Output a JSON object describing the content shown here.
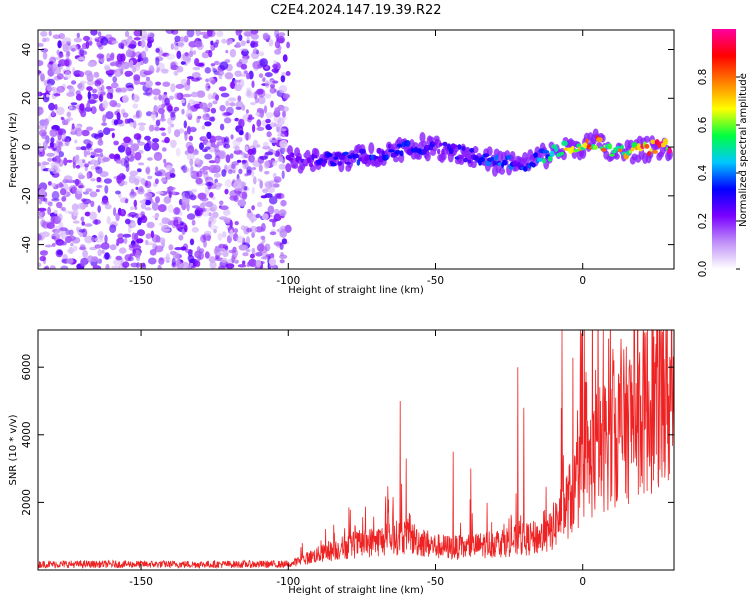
{
  "title": "C2E4.2024.147.19.39.R22",
  "chart_data": [
    {
      "type": "heatmap",
      "xlabel": "Height of straight line (km)",
      "ylabel": "Frequency (Hz)",
      "xlim": [
        -185,
        31
      ],
      "ylim": [
        -50,
        48
      ],
      "x_ticks": [
        -150,
        -100,
        -50,
        0
      ],
      "y_ticks": [
        -40,
        -20,
        0,
        20,
        40
      ],
      "colorbar": {
        "label": "Normalized spectral amplitude",
        "range": [
          0,
          1
        ],
        "ticks": [
          0.0,
          0.2,
          0.4,
          0.6,
          0.8
        ],
        "tick_labels": [
          "0.0",
          "0.2",
          "0.4",
          "0.6",
          "0.8"
        ],
        "colormap": [
          "#ffffff",
          "#c090f8",
          "#7a00ff",
          "#0000ff",
          "#00c8ff",
          "#00ff40",
          "#ffff00",
          "#ff8000",
          "#ff0000",
          "#ff00a0"
        ]
      },
      "description_noise": {
        "x_range": [
          -185,
          -100
        ],
        "freq_range": [
          -50,
          48
        ]
      },
      "signal_track": [
        {
          "x": -100,
          "freq": -5,
          "amp": 0.25
        },
        {
          "x": -90,
          "freq": -6,
          "amp": 0.3
        },
        {
          "x": -80,
          "freq": -5,
          "amp": 0.35
        },
        {
          "x": -70,
          "freq": -3,
          "amp": 0.35
        },
        {
          "x": -60,
          "freq": 0,
          "amp": 0.35
        },
        {
          "x": -50,
          "freq": 0,
          "amp": 0.3
        },
        {
          "x": -40,
          "freq": -3,
          "amp": 0.3
        },
        {
          "x": -30,
          "freq": -6,
          "amp": 0.4
        },
        {
          "x": -20,
          "freq": -7,
          "amp": 0.35
        },
        {
          "x": -10,
          "freq": -2,
          "amp": 0.55
        },
        {
          "x": 0,
          "freq": 1,
          "amp": 0.8
        },
        {
          "x": 5,
          "freq": 2,
          "amp": 0.85
        },
        {
          "x": 10,
          "freq": -3,
          "amp": 0.75
        },
        {
          "x": 15,
          "freq": -2,
          "amp": 0.8
        },
        {
          "x": 20,
          "freq": -1,
          "amp": 0.9
        },
        {
          "x": 25,
          "freq": 0,
          "amp": 0.95
        },
        {
          "x": 30,
          "freq": 0,
          "amp": 0.95
        }
      ]
    },
    {
      "type": "line",
      "xlabel": "Height of straight line (km)",
      "ylabel": "SNR (10 * v/v)",
      "xlim": [
        -185,
        31
      ],
      "ylim": [
        0,
        7100
      ],
      "x_ticks": [
        -150,
        -100,
        -50,
        0
      ],
      "y_ticks": [
        2000,
        4000,
        6000
      ],
      "line_color": "#ee2222",
      "series": [
        {
          "baseline": [
            {
              "x": -185,
              "y": 150
            },
            {
              "x": -100,
              "y": 150
            },
            {
              "x": -92,
              "y": 400
            },
            {
              "x": -80,
              "y": 700
            },
            {
              "x": -70,
              "y": 850
            },
            {
              "x": -60,
              "y": 1000
            },
            {
              "x": -50,
              "y": 700
            },
            {
              "x": -40,
              "y": 650
            },
            {
              "x": -30,
              "y": 800
            },
            {
              "x": -20,
              "y": 900
            },
            {
              "x": -12,
              "y": 1000
            },
            {
              "x": -5,
              "y": 2000
            },
            {
              "x": 0,
              "y": 2800
            },
            {
              "x": 5,
              "y": 3500
            },
            {
              "x": 10,
              "y": 4000
            },
            {
              "x": 15,
              "y": 4300
            },
            {
              "x": 20,
              "y": 4700
            },
            {
              "x": 25,
              "y": 5000
            },
            {
              "x": 31,
              "y": 5000
            }
          ],
          "spikes": [
            {
              "x": -62,
              "y": 5000
            },
            {
              "x": -60,
              "y": 3300
            },
            {
              "x": -44,
              "y": 3500
            },
            {
              "x": -38,
              "y": 3000
            },
            {
              "x": -22,
              "y": 6000
            },
            {
              "x": -20,
              "y": 4800
            },
            {
              "x": -7,
              "y": 7100
            },
            {
              "x": 7,
              "y": 7100
            },
            {
              "x": 8,
              "y": 5000
            },
            {
              "x": 6,
              "y": 5000
            }
          ]
        }
      ]
    }
  ]
}
